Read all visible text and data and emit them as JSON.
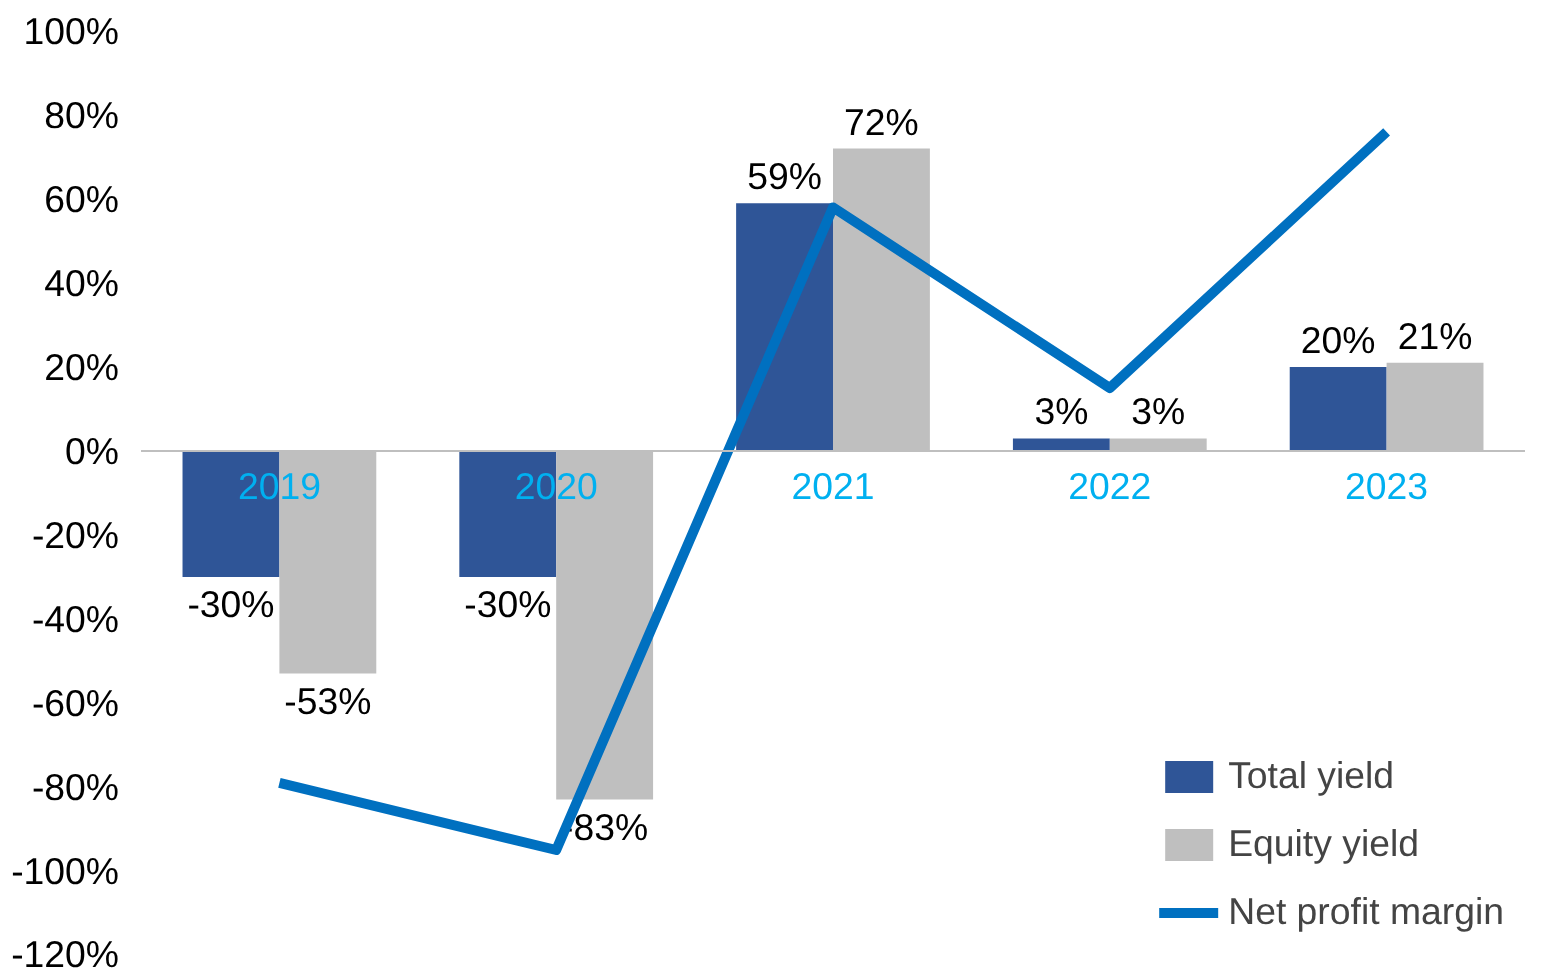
{
  "chart_data": {
    "type": "bar",
    "categories": [
      "2019",
      "2020",
      "2021",
      "2022",
      "2023"
    ],
    "series": [
      {
        "name": "Total yield",
        "color": "#2f5597",
        "values": [
          -30,
          -30,
          59,
          3,
          20
        ]
      },
      {
        "name": "Equity yield",
        "color": "#bfbfbf",
        "values": [
          -53,
          -83,
          72,
          3,
          21
        ]
      },
      {
        "name": "Net profit margin",
        "color": "#0070c0",
        "type": "line",
        "values": [
          -79,
          -95,
          58,
          15,
          76
        ]
      }
    ],
    "ylim": [
      -120,
      100
    ],
    "yticks": [
      {
        "value": -120,
        "label": "-120%"
      },
      {
        "value": -100,
        "label": "-100%"
      },
      {
        "value": -80,
        "label": "-80%"
      },
      {
        "value": -60,
        "label": "-60%"
      },
      {
        "value": -40,
        "label": "-40%"
      },
      {
        "value": -20,
        "label": "-20%"
      },
      {
        "value": 0,
        "label": "0%"
      },
      {
        "value": 20,
        "label": "20%"
      },
      {
        "value": 40,
        "label": "40%"
      },
      {
        "value": 60,
        "label": "60%"
      },
      {
        "value": 80,
        "label": "80%"
      },
      {
        "value": 100,
        "label": "100%"
      }
    ],
    "value_labels": [
      [
        "-30%",
        "-30%",
        "59%",
        "3%",
        "20%"
      ],
      [
        "-53%",
        "-83%",
        "72%",
        "3%",
        "21%"
      ],
      null
    ],
    "grid": false,
    "legend": "bottom right",
    "marker": "none",
    "line_style": "solid"
  }
}
